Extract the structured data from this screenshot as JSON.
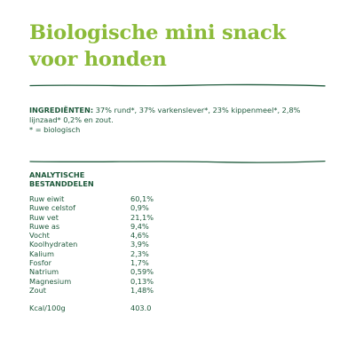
{
  "title": "Biologische mini snack voor honden",
  "ingredients": {
    "label": "INGREDIËNTEN:",
    "text": "37% rund*, 37% varkenslever*, 23% kippenmeel*, 2,8% lijnzaad* 0,2% en zout.",
    "note": "* = biologisch"
  },
  "analysis": {
    "heading_line1": "ANALYTISCHE",
    "heading_line2": "BESTANDDELEN",
    "rows": [
      {
        "name": "Ruw eiwit",
        "value": "60,1%"
      },
      {
        "name": "Ruwe celstof",
        "value": "0,9%"
      },
      {
        "name": "Ruw vet",
        "value": "21,1%"
      },
      {
        "name": "Ruwe as",
        "value": "9,4%"
      },
      {
        "name": "Vocht",
        "value": "4,6%"
      },
      {
        "name": "Koolhydraten",
        "value": "3,9%"
      },
      {
        "name": "Kalium",
        "value": "2,3%"
      },
      {
        "name": "Fosfor",
        "value": "1,7%"
      },
      {
        "name": "Natrium",
        "value": "0,59%"
      },
      {
        "name": "Magnesium",
        "value": "0,13%"
      },
      {
        "name": "Zout",
        "value": "1,48%"
      }
    ],
    "kcal_label": "Kcal/100g",
    "kcal_value": "403.0"
  },
  "colors": {
    "title": "#8cbb3a",
    "text": "#1f5a3c",
    "rule": "#1f5a3c"
  }
}
